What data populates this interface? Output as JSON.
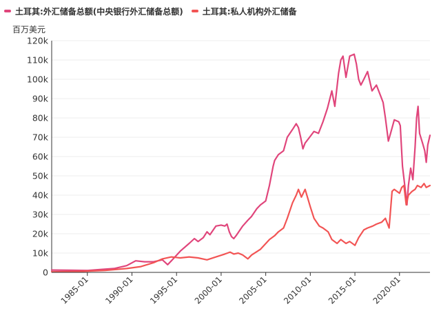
{
  "chart_data": {
    "type": "line",
    "title": "",
    "ylabel": "百万美元",
    "xlabel": "",
    "ylim": [
      0,
      120000
    ],
    "xlim": [
      "1981-01",
      "2023-06"
    ],
    "grid": true,
    "legend_placement": "top-left",
    "y_ticks": [
      {
        "value": 0,
        "label": "0"
      },
      {
        "value": 10000,
        "label": "10k"
      },
      {
        "value": 20000,
        "label": "20k"
      },
      {
        "value": 30000,
        "label": "30k"
      },
      {
        "value": 40000,
        "label": "40k"
      },
      {
        "value": 50000,
        "label": "50k"
      },
      {
        "value": 60000,
        "label": "60k"
      },
      {
        "value": 70000,
        "label": "70k"
      },
      {
        "value": 80000,
        "label": "80k"
      },
      {
        "value": 90000,
        "label": "90k"
      },
      {
        "value": 100000,
        "label": "100k"
      },
      {
        "value": 110000,
        "label": "110k"
      },
      {
        "value": 120000,
        "label": "120k"
      }
    ],
    "x_ticks": [
      "1985-01",
      "1990-01",
      "1995-01",
      "2000-01",
      "2005-01",
      "2010-01",
      "2015-01",
      "2020-01"
    ],
    "series": [
      {
        "name": "土耳其:外汇储备总额(中央银行外汇储备总额)",
        "color": "#e0457b",
        "points": [
          [
            "1981-01",
            1200
          ],
          [
            "1983-01",
            1100
          ],
          [
            "1985-01",
            1000
          ],
          [
            "1986-06",
            1500
          ],
          [
            "1988-01",
            2000
          ],
          [
            "1989-06",
            3500
          ],
          [
            "1990-06",
            6000
          ],
          [
            "1991-06",
            5500
          ],
          [
            "1992-06",
            5500
          ],
          [
            "1993-06",
            6500
          ],
          [
            "1994-01",
            4000
          ],
          [
            "1994-06",
            6000
          ],
          [
            "1995-06",
            11000
          ],
          [
            "1996-06",
            15000
          ],
          [
            "1997-01",
            17500
          ],
          [
            "1997-06",
            16000
          ],
          [
            "1998-01",
            18000
          ],
          [
            "1998-06",
            21000
          ],
          [
            "1998-10",
            19500
          ],
          [
            "1999-06",
            24000
          ],
          [
            "2000-01",
            24500
          ],
          [
            "2000-06",
            24000
          ],
          [
            "2000-09",
            25000
          ],
          [
            "2000-12",
            21000
          ],
          [
            "2001-03",
            18500
          ],
          [
            "2001-06",
            17500
          ],
          [
            "2001-10",
            19500
          ],
          [
            "2002-06",
            24000
          ],
          [
            "2003-01",
            27000
          ],
          [
            "2003-06",
            29000
          ],
          [
            "2004-01",
            33000
          ],
          [
            "2004-06",
            35000
          ],
          [
            "2005-01",
            37000
          ],
          [
            "2005-06",
            45000
          ],
          [
            "2005-11",
            55000
          ],
          [
            "2006-01",
            58000
          ],
          [
            "2006-06",
            61000
          ],
          [
            "2007-01",
            63000
          ],
          [
            "2007-06",
            70000
          ],
          [
            "2008-01",
            74000
          ],
          [
            "2008-06",
            77000
          ],
          [
            "2008-09",
            75000
          ],
          [
            "2008-12",
            70000
          ],
          [
            "2009-03",
            64000
          ],
          [
            "2009-06",
            67000
          ],
          [
            "2009-12",
            70000
          ],
          [
            "2010-06",
            73000
          ],
          [
            "2010-12",
            72000
          ],
          [
            "2011-06",
            78000
          ],
          [
            "2011-12",
            85000
          ],
          [
            "2012-06",
            94000
          ],
          [
            "2012-10",
            86000
          ],
          [
            "2013-03",
            103000
          ],
          [
            "2013-06",
            110000
          ],
          [
            "2013-09",
            112000
          ],
          [
            "2014-01",
            101000
          ],
          [
            "2014-06",
            112000
          ],
          [
            "2014-12",
            113000
          ],
          [
            "2015-03",
            108000
          ],
          [
            "2015-06",
            100000
          ],
          [
            "2015-09",
            97000
          ],
          [
            "2016-01",
            100000
          ],
          [
            "2016-06",
            104000
          ],
          [
            "2016-12",
            94000
          ],
          [
            "2017-06",
            97000
          ],
          [
            "2017-12",
            91000
          ],
          [
            "2018-03",
            88000
          ],
          [
            "2018-06",
            80000
          ],
          [
            "2018-10",
            68000
          ],
          [
            "2019-01",
            72000
          ],
          [
            "2019-06",
            79000
          ],
          [
            "2019-12",
            78000
          ],
          [
            "2020-02",
            76000
          ],
          [
            "2020-05",
            55000
          ],
          [
            "2020-09",
            42000
          ],
          [
            "2020-11",
            35000
          ],
          [
            "2021-01",
            45000
          ],
          [
            "2021-04",
            54000
          ],
          [
            "2021-07",
            48000
          ],
          [
            "2021-10",
            65000
          ],
          [
            "2021-12",
            80000
          ],
          [
            "2022-02",
            86000
          ],
          [
            "2022-04",
            72000
          ],
          [
            "2022-08",
            67000
          ],
          [
            "2022-11",
            63000
          ],
          [
            "2023-01",
            57000
          ],
          [
            "2023-03",
            66000
          ],
          [
            "2023-06",
            71000
          ]
        ]
      },
      {
        "name": "土耳其:私人机构外汇储备",
        "color": "#f25454",
        "points": [
          [
            "1981-01",
            300
          ],
          [
            "1984-01",
            500
          ],
          [
            "1987-01",
            1000
          ],
          [
            "1989-06",
            2000
          ],
          [
            "1991-01",
            3000
          ],
          [
            "1992-06",
            5000
          ],
          [
            "1993-06",
            7000
          ],
          [
            "1994-06",
            8000
          ],
          [
            "1995-06",
            7500
          ],
          [
            "1996-06",
            8000
          ],
          [
            "1997-06",
            7500
          ],
          [
            "1998-06",
            6500
          ],
          [
            "1999-06",
            8000
          ],
          [
            "2000-06",
            9500
          ],
          [
            "2001-01",
            10500
          ],
          [
            "2001-06",
            9500
          ],
          [
            "2001-12",
            10000
          ],
          [
            "2002-06",
            9000
          ],
          [
            "2003-01",
            7000
          ],
          [
            "2003-06",
            9000
          ],
          [
            "2004-06",
            12000
          ],
          [
            "2005-06",
            17000
          ],
          [
            "2006-01",
            19000
          ],
          [
            "2006-06",
            21000
          ],
          [
            "2007-01",
            23000
          ],
          [
            "2007-06",
            28000
          ],
          [
            "2008-01",
            36000
          ],
          [
            "2008-06",
            40000
          ],
          [
            "2008-09",
            43000
          ],
          [
            "2009-01",
            39000
          ],
          [
            "2009-06",
            43000
          ],
          [
            "2010-01",
            34000
          ],
          [
            "2010-06",
            28000
          ],
          [
            "2011-01",
            24000
          ],
          [
            "2011-06",
            23000
          ],
          [
            "2012-01",
            21000
          ],
          [
            "2012-06",
            17000
          ],
          [
            "2013-01",
            15000
          ],
          [
            "2013-06",
            17000
          ],
          [
            "2014-01",
            15000
          ],
          [
            "2014-06",
            16000
          ],
          [
            "2015-01",
            14000
          ],
          [
            "2015-06",
            18000
          ],
          [
            "2016-01",
            22000
          ],
          [
            "2016-06",
            23000
          ],
          [
            "2017-01",
            24000
          ],
          [
            "2017-06",
            25000
          ],
          [
            "2018-01",
            26000
          ],
          [
            "2018-06",
            28000
          ],
          [
            "2018-11",
            23000
          ],
          [
            "2019-03",
            42000
          ],
          [
            "2019-06",
            43000
          ],
          [
            "2020-01",
            41000
          ],
          [
            "2020-04",
            44000
          ],
          [
            "2020-07",
            45000
          ],
          [
            "2020-10",
            35000
          ],
          [
            "2021-01",
            40000
          ],
          [
            "2021-06",
            42000
          ],
          [
            "2021-10",
            43000
          ],
          [
            "2022-01",
            45000
          ],
          [
            "2022-06",
            44000
          ],
          [
            "2022-10",
            46000
          ],
          [
            "2023-01",
            44000
          ],
          [
            "2023-06",
            45000
          ]
        ]
      }
    ]
  }
}
